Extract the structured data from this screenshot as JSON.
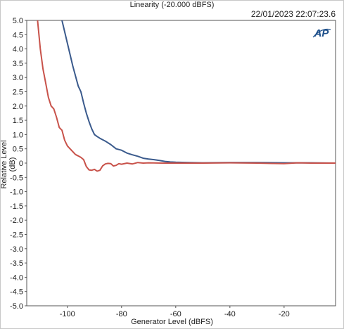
{
  "timestamp": "22/01/2023 22:07:23.6",
  "logo": {
    "text": "AP",
    "color": "#1d4f8a"
  },
  "chart_data": {
    "type": "line",
    "title": "Linearity (-20.000 dBFS)",
    "xlabel": "Generator Level (dBFS)",
    "ylabel": "Relative Level (dB)",
    "xlim": [
      -115,
      -1
    ],
    "ylim": [
      -5.0,
      5.0
    ],
    "xticks": [
      -100,
      -80,
      -60,
      -40,
      -20
    ],
    "xtick_labels": [
      "-100",
      "-80",
      "-60",
      "-40",
      "-20"
    ],
    "yticks": [
      5,
      4.5,
      4,
      3.5,
      3,
      2.5,
      2,
      1.5,
      1,
      0.5,
      0,
      -0.5,
      -1,
      -1.5,
      -2,
      -2.5,
      -3,
      -3.5,
      -4,
      -4.5,
      -5
    ],
    "ytick_labels": [
      "5.0",
      "4.5",
      "4.0",
      "3.5",
      "3.0",
      "2.5",
      "2.0",
      "1.5",
      "1.0",
      "0.5",
      "0",
      "-0.5",
      "-1.0",
      "-1.5",
      "-2.0",
      "-2.5",
      "-3.0",
      "-3.5",
      "-4.0",
      "-4.5",
      "-5.0"
    ],
    "grid": false,
    "legend": "none",
    "series": [
      {
        "color": "#3a5a8c",
        "x": [
          -102,
          -100,
          -98,
          -96,
          -95,
          -94,
          -93,
          -92,
          -91,
          -90,
          -89,
          -88,
          -86,
          -84,
          -82,
          -80,
          -78,
          -76,
          -74,
          -72,
          -70,
          -68,
          -66,
          -64,
          -62,
          -60,
          -55,
          -50,
          -40,
          -30,
          -20,
          -10,
          -1
        ],
        "y": [
          5.0,
          4.2,
          3.4,
          2.7,
          2.5,
          2.1,
          1.75,
          1.45,
          1.2,
          1.0,
          0.93,
          0.87,
          0.77,
          0.65,
          0.5,
          0.45,
          0.35,
          0.29,
          0.24,
          0.17,
          0.14,
          0.12,
          0.09,
          0.06,
          0.04,
          0.03,
          0.02,
          0.01,
          0.02,
          0.02,
          0.01,
          0.01,
          0.0
        ]
      },
      {
        "color": "#c8524a",
        "x": [
          -111,
          -110,
          -109,
          -108,
          -107,
          -106,
          -105,
          -104,
          -103,
          -102,
          -101,
          -100,
          -99,
          -98,
          -97,
          -96,
          -95,
          -94,
          -93,
          -92,
          -91,
          -90,
          -89,
          -88,
          -87,
          -86,
          -85,
          -84,
          -83,
          -82,
          -81,
          -80,
          -78,
          -76,
          -74,
          -72,
          -70,
          -65,
          -60,
          -50,
          -40,
          -30,
          -20,
          -15,
          -10,
          -1
        ],
        "y": [
          5.0,
          4.0,
          3.3,
          2.8,
          2.3,
          2.0,
          1.9,
          1.6,
          1.25,
          1.15,
          0.8,
          0.6,
          0.5,
          0.4,
          0.3,
          0.25,
          0.2,
          0.12,
          -0.12,
          -0.24,
          -0.25,
          -0.22,
          -0.28,
          -0.25,
          -0.1,
          -0.03,
          -0.01,
          -0.02,
          -0.1,
          -0.08,
          -0.02,
          -0.04,
          0.0,
          -0.03,
          0.02,
          0.0,
          0.01,
          0.0,
          0.0,
          0.0,
          0.01,
          0.0,
          -0.02,
          0.01,
          0.0,
          0.0
        ]
      }
    ]
  }
}
